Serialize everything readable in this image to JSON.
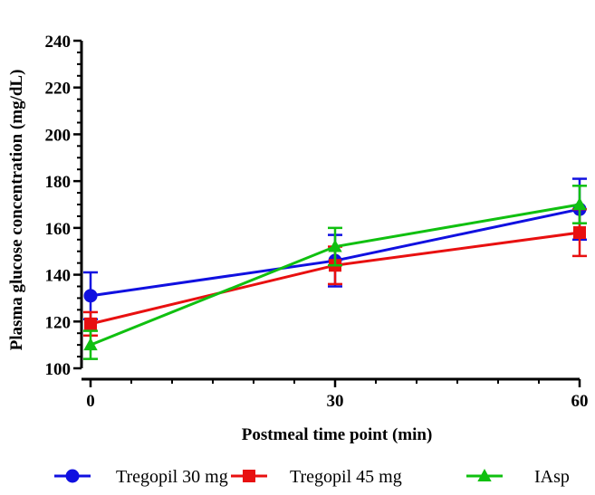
{
  "chart_data": {
    "type": "line",
    "xlabel": "Postmeal time point (min)",
    "ylabel": "Plasma glucose concentration  (mg/dL)",
    "x": [
      0,
      30,
      60
    ],
    "xticks": [
      0,
      30,
      60
    ],
    "xlim": [
      0,
      60
    ],
    "ylim": [
      100,
      240
    ],
    "yticks": [
      100,
      120,
      140,
      160,
      180,
      200,
      220,
      240
    ],
    "grid": false,
    "legend": "bottom",
    "series": [
      {
        "name": "Tregopil 30 mg",
        "color": "#1010e0",
        "marker": "circle",
        "values": [
          131,
          146,
          168
        ],
        "err": [
          10,
          11,
          13
        ]
      },
      {
        "name": "Tregopil 45 mg",
        "color": "#e81010",
        "marker": "square",
        "values": [
          119,
          144,
          158
        ],
        "err": [
          5,
          8,
          10
        ]
      },
      {
        "name": "IAsp",
        "color": "#10c010",
        "marker": "triangle",
        "values": [
          110,
          152,
          170
        ],
        "err": [
          6,
          8,
          8
        ]
      }
    ]
  }
}
